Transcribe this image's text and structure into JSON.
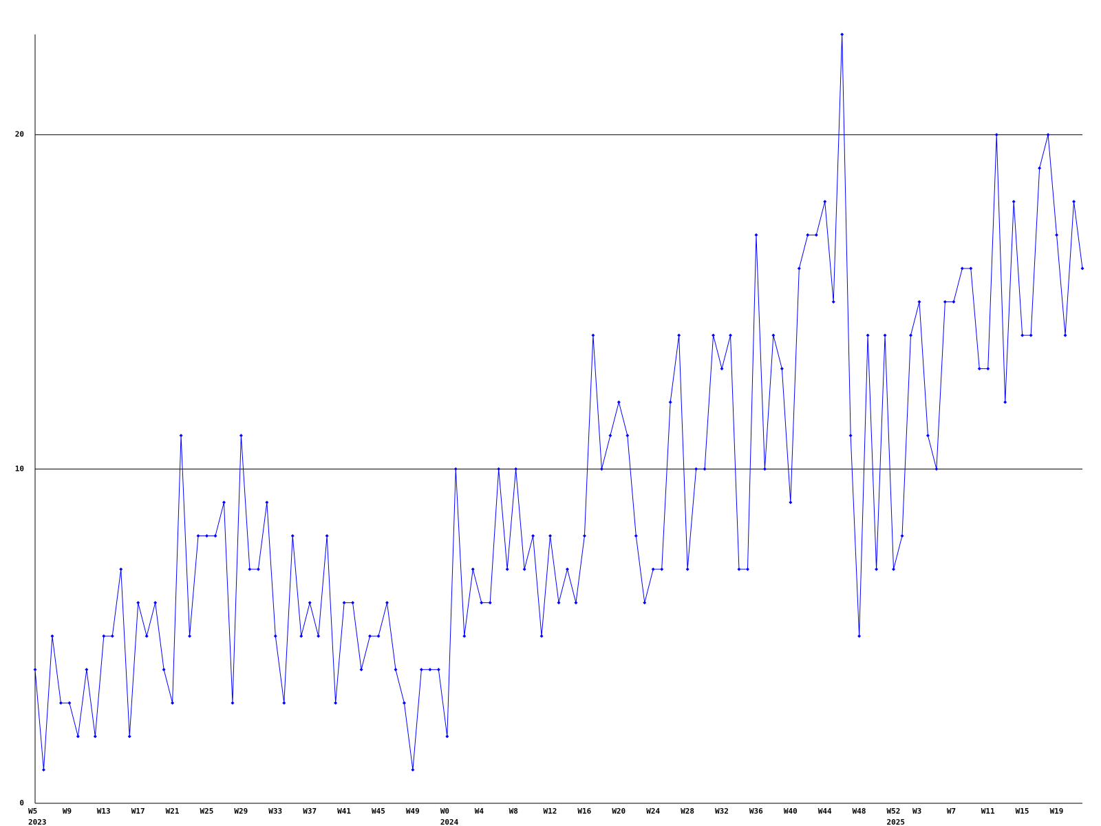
{
  "chart_data": {
    "type": "line",
    "categories": [
      "W5",
      null,
      null,
      null,
      "W9",
      null,
      null,
      null,
      "W13",
      null,
      null,
      null,
      "W17",
      null,
      null,
      null,
      "W21",
      null,
      null,
      null,
      "W25",
      null,
      null,
      null,
      "W29",
      null,
      null,
      null,
      "W33",
      null,
      null,
      null,
      "W37",
      null,
      null,
      null,
      "W41",
      null,
      null,
      null,
      "W45",
      null,
      null,
      null,
      "W49",
      null,
      null,
      null,
      "W0",
      null,
      null,
      null,
      "W4",
      null,
      null,
      null,
      "W8",
      null,
      null,
      null,
      "W12",
      null,
      null,
      null,
      "W16",
      null,
      null,
      null,
      "W20",
      null,
      null,
      null,
      "W24",
      null,
      null,
      null,
      "W28",
      null,
      null,
      null,
      "W32",
      null,
      null,
      null,
      "W36",
      null,
      null,
      null,
      "W40",
      null,
      null,
      null,
      "W44",
      null,
      null,
      null,
      "W48",
      null,
      null,
      null,
      "W52",
      null,
      null,
      "W3",
      null,
      null,
      null,
      "W7",
      null,
      null,
      null,
      "W11",
      null,
      null,
      null,
      "W15",
      null,
      null,
      null,
      "W19",
      null,
      null,
      null
    ],
    "year_labels": [
      "2023",
      null,
      null,
      null,
      null,
      null,
      null,
      null,
      null,
      null,
      null,
      null,
      null,
      null,
      null,
      null,
      null,
      null,
      null,
      null,
      null,
      null,
      null,
      null,
      null,
      null,
      null,
      null,
      null,
      null,
      null,
      null,
      null,
      null,
      null,
      null,
      null,
      null,
      null,
      null,
      null,
      null,
      null,
      null,
      null,
      null,
      null,
      null,
      "2024",
      null,
      null,
      null,
      null,
      null,
      null,
      null,
      null,
      null,
      null,
      null,
      null,
      null,
      null,
      null,
      null,
      null,
      null,
      null,
      null,
      null,
      null,
      null,
      null,
      null,
      null,
      null,
      null,
      null,
      null,
      null,
      null,
      null,
      null,
      null,
      null,
      null,
      null,
      null,
      null,
      null,
      null,
      null,
      null,
      null,
      null,
      null,
      null,
      null,
      null,
      null,
      "2025",
      null,
      null,
      null,
      null,
      null,
      null,
      null,
      null,
      null,
      null,
      null,
      null,
      null,
      null,
      null,
      null,
      null,
      null,
      null,
      null,
      null
    ],
    "series": [
      {
        "color": "#0000ff",
        "values": [
          4,
          1,
          5,
          3,
          3,
          2,
          4,
          2,
          5,
          5,
          7,
          2,
          6,
          5,
          6,
          4,
          3,
          11,
          5,
          8,
          8,
          8,
          9,
          3,
          11,
          7,
          7,
          9,
          5,
          3,
          8,
          5,
          6,
          5,
          8,
          3,
          6,
          6,
          4,
          5,
          5,
          6,
          4,
          3,
          1,
          4,
          4,
          4,
          2,
          10,
          5,
          7,
          6,
          6,
          10,
          7,
          10,
          7,
          8,
          5,
          8,
          6,
          7,
          6,
          8,
          14,
          10,
          11,
          12,
          11,
          8,
          6,
          7,
          7,
          12,
          14,
          7,
          10,
          10,
          14,
          13,
          14,
          7,
          7,
          17,
          10,
          14,
          13,
          9,
          16,
          17,
          17,
          18,
          15,
          23,
          11,
          5,
          14,
          7,
          14,
          7,
          8,
          14,
          15,
          11,
          10,
          15,
          15,
          16,
          16,
          13,
          13,
          20,
          12,
          18,
          14,
          14,
          19,
          20,
          17,
          14,
          18,
          16
        ]
      }
    ],
    "ylim": [
      0,
      23
    ],
    "yticks": [
      0,
      10,
      20
    ],
    "grid": true
  }
}
